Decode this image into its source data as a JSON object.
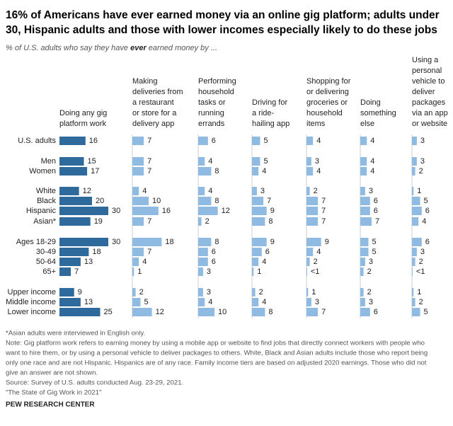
{
  "chart_data": {
    "type": "bar",
    "title": [
      "16% of Americans have ever earned money via an online gig platform; adults under",
      "30, Hispanic adults and those with lower incomes especially likely to do these jobs"
    ],
    "subtitle": [
      "% of U.S. adults who say they have ",
      "ever",
      " earned money by ..."
    ],
    "categories": [
      "U.S. adults",
      "Men",
      "Women",
      "White",
      "Black",
      "Hispanic",
      "Asian*",
      "Ages 18-29",
      "30-49",
      "50-64",
      "65+",
      "Upper income",
      "Middle income",
      "Lower income"
    ],
    "series": [
      {
        "name": [
          "Doing any gig",
          "platform work"
        ],
        "color": "#2f6a9c",
        "values": [
          16,
          15,
          17,
          12,
          20,
          30,
          19,
          30,
          18,
          13,
          7,
          9,
          13,
          25
        ]
      },
      {
        "name": [
          "Making",
          "deliveries from",
          "a restaurant",
          "or store for a",
          "delivery app"
        ],
        "color": "#8fbbe3",
        "values": [
          7,
          7,
          7,
          4,
          10,
          16,
          7,
          18,
          7,
          4,
          1,
          2,
          5,
          12
        ]
      },
      {
        "name": [
          "Performing",
          "household",
          "tasks or",
          "running",
          "errands"
        ],
        "color": "#8fbbe3",
        "values": [
          6,
          4,
          8,
          4,
          8,
          12,
          2,
          8,
          6,
          6,
          3,
          3,
          4,
          10
        ]
      },
      {
        "name": [
          "Driving for",
          "a ride-",
          "hailing app"
        ],
        "color": "#8fbbe3",
        "values": [
          5,
          5,
          4,
          3,
          7,
          9,
          8,
          9,
          6,
          4,
          1,
          2,
          4,
          8
        ]
      },
      {
        "name": [
          "Shopping for",
          "or delivering",
          "groceries or",
          "household",
          "items"
        ],
        "color": "#8fbbe3",
        "values": [
          4,
          3,
          4,
          2,
          7,
          7,
          7,
          9,
          4,
          2,
          0.4,
          1,
          3,
          7
        ],
        "value_labels": [
          "4",
          "3",
          "4",
          "2",
          "7",
          "7",
          "7",
          "9",
          "4",
          "2",
          "<1",
          "1",
          "3",
          "7"
        ]
      },
      {
        "name": [
          "Doing",
          "something",
          "else"
        ],
        "color": "#8fbbe3",
        "values": [
          4,
          4,
          4,
          3,
          6,
          6,
          7,
          5,
          5,
          3,
          2,
          2,
          3,
          6
        ]
      },
      {
        "name": [
          "Using a",
          "personal",
          "vehicle to",
          "deliver",
          "packages",
          "via an app",
          "or website"
        ],
        "color": "#8fbbe3",
        "values": [
          3,
          3,
          2,
          1,
          5,
          6,
          4,
          6,
          3,
          2,
          0.4,
          1,
          2,
          5
        ],
        "value_labels": [
          "3",
          "3",
          "2",
          "1",
          "5",
          "6",
          "4",
          "6",
          "3",
          "2",
          "<1",
          "1",
          "2",
          "5"
        ]
      }
    ],
    "notes": [
      "*Asian adults were interviewed in English only.",
      "Note: Gig platform work refers to earning money by using a mobile app or website to find jobs that directly connect workers with people who",
      "want to hire them, or by using a personal vehicle to deliver packages to others. White, Black and Asian adults include those who report being",
      "only one race and are not Hispanic. Hispanics are of any race. Family income tiers are based on adjusted 2020 earnings. Those who did not",
      "give an answer are not shown.",
      "Source: Survey of U.S. adults conducted Aug. 23-29, 2021.",
      "“The State of Gig Work in 2021”"
    ],
    "credit": "PEW RESEARCH CENTER"
  }
}
